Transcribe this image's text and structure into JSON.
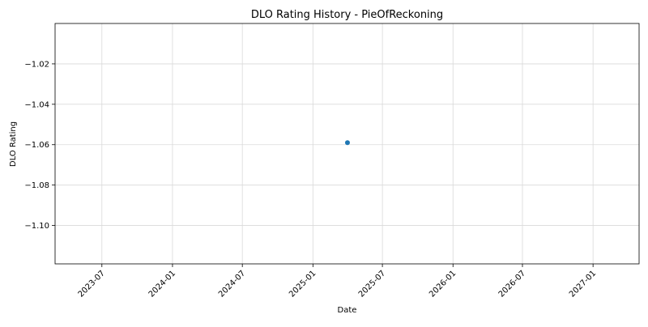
{
  "chart_data": {
    "type": "scatter",
    "title": "DLO Rating History - PieOfReckoning",
    "xlabel": "Date",
    "ylabel": "DLO Rating",
    "xlim": [
      "2023-03-01",
      "2027-05-01"
    ],
    "ylim": [
      -1.119,
      -1.0
    ],
    "x_ticks": [
      "2023-07",
      "2024-01",
      "2024-07",
      "2025-01",
      "2025-07",
      "2026-01",
      "2026-07",
      "2027-01"
    ],
    "y_ticks": [
      -1.02,
      -1.04,
      -1.06,
      -1.08,
      -1.1
    ],
    "y_tick_labels": [
      "−1.02",
      "−1.04",
      "−1.06",
      "−1.08",
      "−1.10"
    ],
    "grid": true,
    "series": [
      {
        "points": [
          {
            "x": "2025-04-01",
            "y": -1.059
          }
        ]
      }
    ],
    "colors": {
      "series": "#1f77b4",
      "grid": "#d9d9d9",
      "axis": "#000000"
    }
  }
}
